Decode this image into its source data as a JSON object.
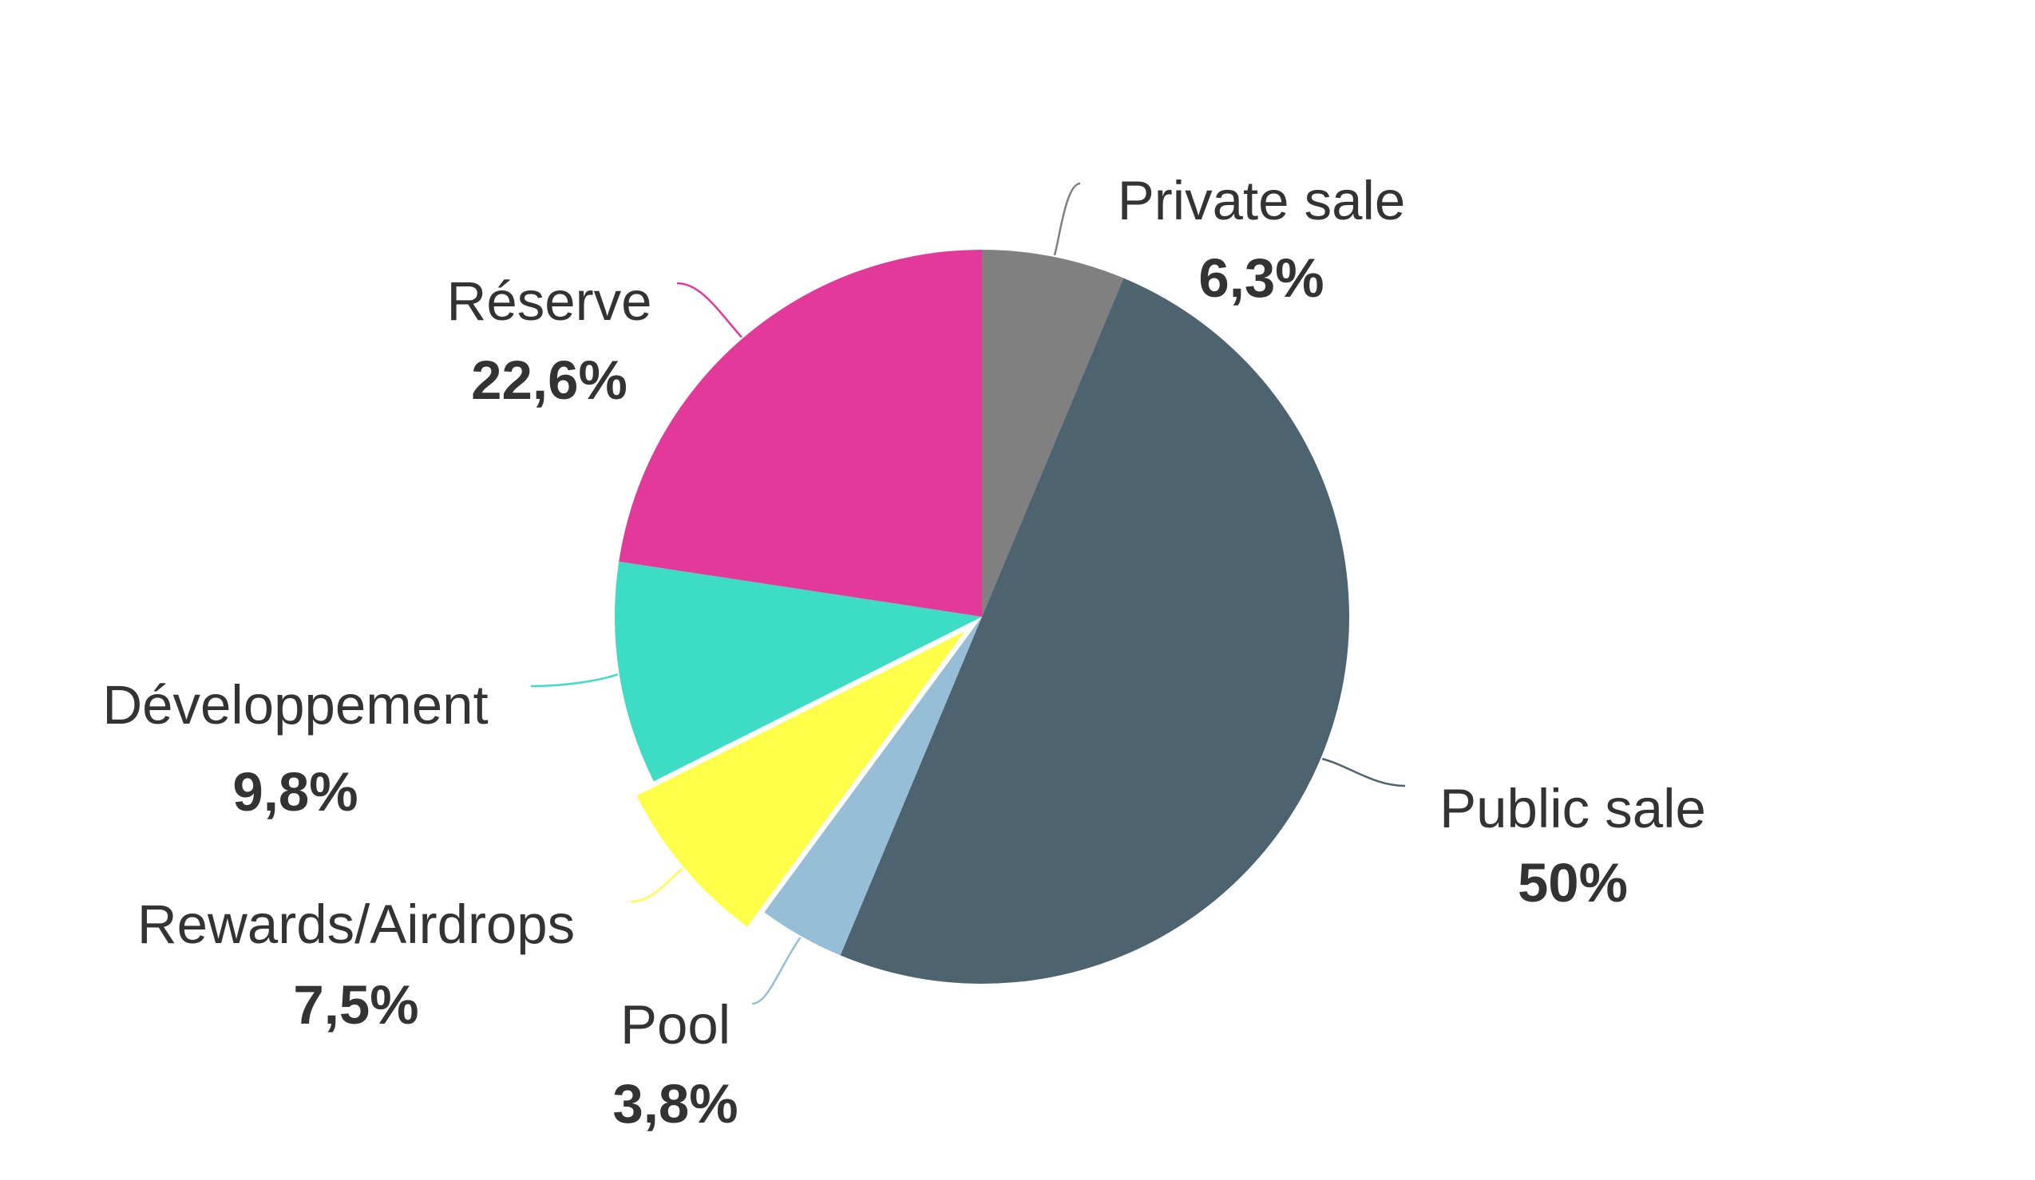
{
  "chart_data": {
    "type": "pie",
    "title": "",
    "start_angle_deg": 0,
    "direction": "clockwise",
    "slices": [
      {
        "label": "Private sale",
        "value": 6.3,
        "display": "6,3%",
        "color": "#808080"
      },
      {
        "label": "Public sale",
        "value": 50,
        "display": "50%",
        "color": "#4d6470"
      },
      {
        "label": "Pool",
        "value": 3.8,
        "display": "3,8%",
        "color": "#96bed7"
      },
      {
        "label": "Rewards/Airdrops",
        "value": 7.5,
        "display": "7,5%",
        "color": "#ffff4a",
        "exploded": true
      },
      {
        "label": "Développement",
        "value": 9.8,
        "display": "9,8%",
        "color": "#3ddcc4"
      },
      {
        "label": "Réserve",
        "value": 22.6,
        "display": "22,6%",
        "color": "#e3399a"
      }
    ],
    "legend": "none",
    "labels": "outside with leader lines"
  }
}
